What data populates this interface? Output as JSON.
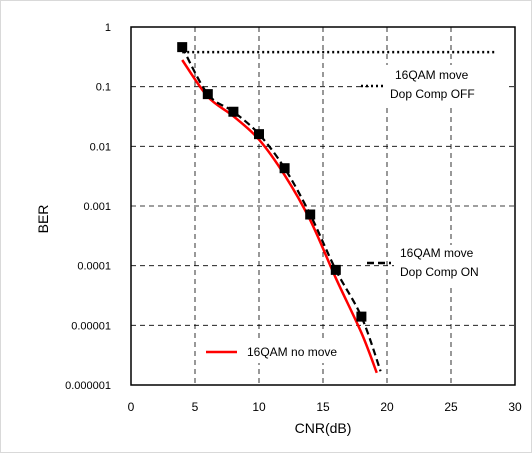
{
  "chart_data": {
    "type": "line",
    "xlabel": "CNR(dB)",
    "ylabel": "BER",
    "xlim": [
      0,
      30
    ],
    "ylim": [
      1e-06,
      1
    ],
    "yscale": "log",
    "grid": "dashed",
    "xticks": [
      "0",
      "5",
      "10",
      "15",
      "20",
      "25",
      "30"
    ],
    "yticks": [
      "0.000001",
      "0.00001",
      "0.0001",
      "0.001",
      "0.01",
      "0.1",
      "1"
    ],
    "series": [
      {
        "name": "16QAM move Dop Comp OFF",
        "style": "dotted",
        "color": "#000000",
        "x": [
          4,
          28.5
        ],
        "y": [
          0.38,
          0.38
        ]
      },
      {
        "name": "16QAM move Dop Comp ON",
        "style": "dashed-with-square-markers",
        "color": "#000000",
        "x": [
          4,
          6,
          8,
          10,
          12,
          14,
          16,
          18,
          19.5
        ],
        "y": [
          0.46,
          0.075,
          0.038,
          0.016,
          0.0043,
          0.00072,
          8.5e-05,
          1.4e-05,
          1.7e-06
        ],
        "markers_x": [
          4,
          6,
          8,
          10,
          12,
          14,
          16,
          18
        ],
        "markers_y": [
          0.46,
          0.075,
          0.038,
          0.016,
          0.0043,
          0.00072,
          8.5e-05,
          1.4e-05
        ]
      },
      {
        "name": "16QAM no move",
        "style": "solid",
        "color": "#ff0000",
        "x": [
          4,
          6,
          8,
          10,
          12,
          14,
          16,
          18,
          19.2
        ],
        "y": [
          0.28,
          0.068,
          0.032,
          0.013,
          0.0033,
          0.00058,
          6.2e-05,
          7.5e-06,
          1.6e-06
        ]
      }
    ],
    "legend": [
      {
        "line1": "16QAM move",
        "line2": "Dop Comp OFF",
        "style": "dotted",
        "color": "#000000"
      },
      {
        "line1": "16QAM move",
        "line2": "Dop Comp ON",
        "style": "dashed",
        "color": "#000000"
      },
      {
        "line1": "16QAM no move",
        "line2": "",
        "style": "solid",
        "color": "#ff0000"
      }
    ]
  }
}
